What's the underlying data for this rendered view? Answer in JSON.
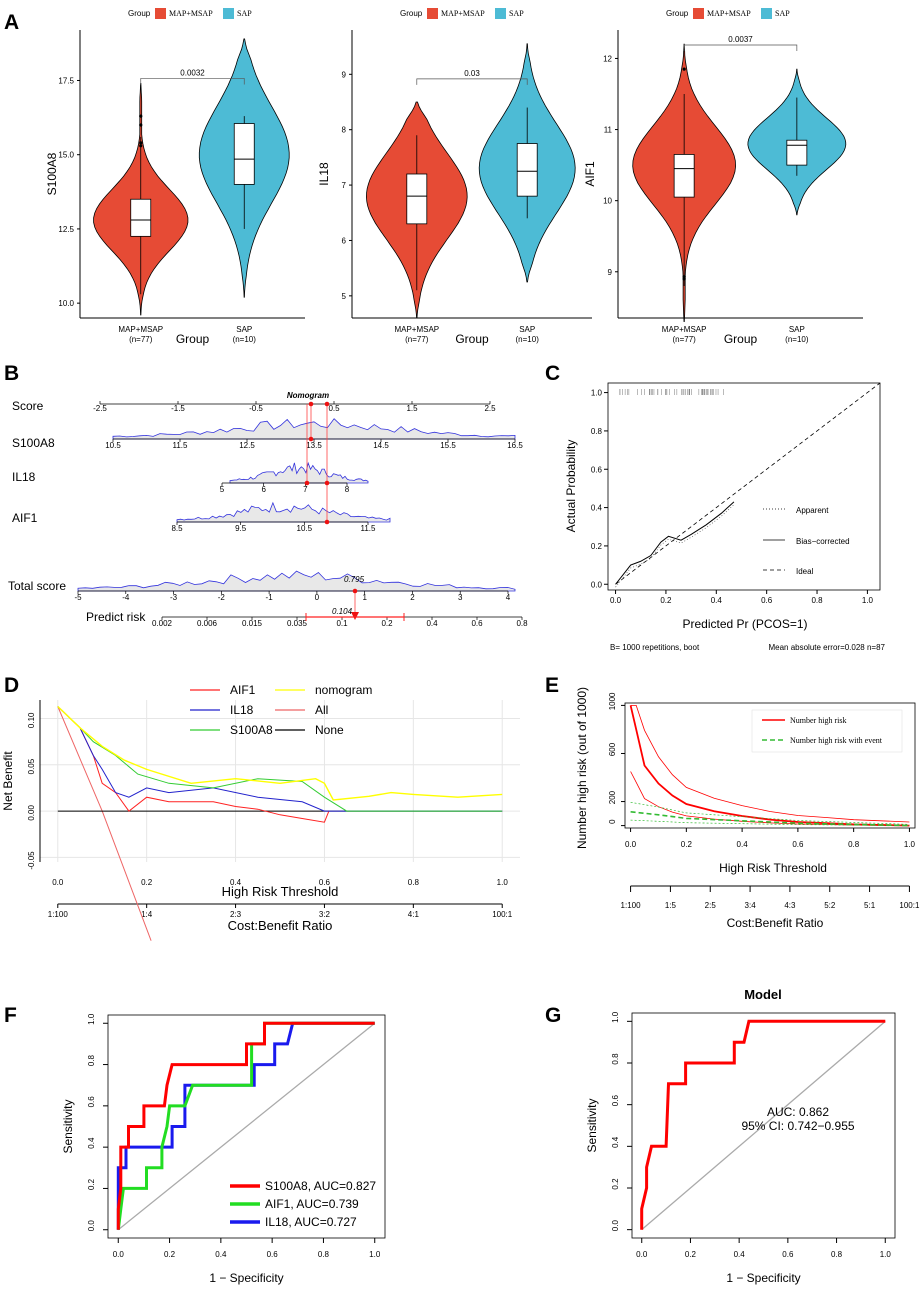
{
  "colors": {
    "red": "#e64b35",
    "blue": "#4dbbd5",
    "roc_red": "#ff0000",
    "roc_green": "#22dd22",
    "roc_blue": "#1a1aee",
    "yellow": "#ffff00",
    "green": "#33cc33",
    "navy": "#2222cc",
    "pink": "#ff6666",
    "dens": "#3333dd"
  },
  "panels": {
    "A": "A",
    "B": "B",
    "C": "C",
    "D": "D",
    "E": "E",
    "F": "F",
    "G": "G"
  },
  "chart_data": [
    {
      "id": "A",
      "type": "violin",
      "legend_title": "Group",
      "legend": [
        "MAP+MSAP",
        "SAP"
      ],
      "xlabel": "Group",
      "categories": [
        "MAP+MSAP\n(n=77)",
        "SAP\n(n=10)"
      ],
      "cat_line1": [
        "MAP+MSAP",
        "SAP"
      ],
      "cat_line2": [
        "(n=77)",
        "(n=10)"
      ],
      "plots": [
        {
          "ylabel": "S100A8",
          "ylim": [
            9.5,
            19.2
          ],
          "yticks": [
            10.0,
            12.5,
            15.0,
            17.5
          ],
          "ytick_labels": [
            "10.0",
            "12.5",
            "15.0",
            "17.5"
          ],
          "pvalue": "0.0032",
          "groups": [
            {
              "min": 10.3,
              "q1": 12.25,
              "median": 12.8,
              "q3": 13.5,
              "max": 15.6,
              "vmin": 9.6,
              "vmax": 17.4,
              "mode": 12.8,
              "outliers": [
                15.4,
                15.3,
                16.0,
                16.3
              ]
            },
            {
              "min": 12.5,
              "q1": 14.0,
              "median": 14.85,
              "q3": 16.05,
              "max": 16.3,
              "vmin": 10.2,
              "vmax": 18.9,
              "mode": 15.0,
              "outliers": []
            }
          ]
        },
        {
          "ylabel": "IL18",
          "ylim": [
            4.6,
            9.8
          ],
          "yticks": [
            5,
            6,
            7,
            8,
            9
          ],
          "ytick_labels": [
            "5",
            "6",
            "7",
            "8",
            "9"
          ],
          "pvalue": "0.03",
          "groups": [
            {
              "min": 5.1,
              "q1": 6.3,
              "median": 6.8,
              "q3": 7.2,
              "max": 7.9,
              "vmin": 4.6,
              "vmax": 8.5,
              "mode": 6.8,
              "outliers": []
            },
            {
              "min": 6.4,
              "q1": 6.8,
              "median": 7.25,
              "q3": 7.75,
              "max": 8.4,
              "vmin": 5.25,
              "vmax": 9.55,
              "mode": 7.3,
              "outliers": []
            }
          ]
        },
        {
          "ylabel": "AIF1",
          "ylim": [
            8.35,
            12.4
          ],
          "yticks": [
            9,
            10,
            11,
            12
          ],
          "ytick_labels": [
            "9",
            "10",
            "11",
            "12"
          ],
          "pvalue": "0.0037",
          "groups": [
            {
              "min": 8.8,
              "q1": 10.05,
              "median": 10.45,
              "q3": 10.65,
              "max": 11.5,
              "vmin": 8.3,
              "vmax": 12.2,
              "mode": 10.5,
              "outliers": [
                8.9,
                8.93,
                11.85
              ]
            },
            {
              "min": 10.35,
              "q1": 10.5,
              "median": 10.78,
              "q3": 10.85,
              "max": 11.45,
              "vmin": 9.8,
              "vmax": 11.85,
              "mode": 10.8,
              "outliers": []
            }
          ]
        }
      ]
    },
    {
      "id": "B",
      "type": "nomogram",
      "title": "Nomogram",
      "rows": [
        {
          "label": "Score",
          "ticks": [
            "-2.5",
            "-1.5",
            "-0.5",
            "0.5",
            "1.5",
            "2.5"
          ]
        },
        {
          "label": "S100A8",
          "ticks": [
            "10.5",
            "11.5",
            "12.5",
            "13.5",
            "14.5",
            "15.5",
            "16.5"
          ]
        },
        {
          "label": "IL18",
          "ticks": [
            "5",
            "6",
            "7",
            "8"
          ]
        },
        {
          "label": "AIF1",
          "ticks": [
            "8.5",
            "9.5",
            "10.5",
            "11.5"
          ]
        },
        {
          "label": "Total score",
          "ticks": [
            "-5",
            "-4",
            "-3",
            "-2",
            "-1",
            "0",
            "1",
            "2",
            "3",
            "4"
          ]
        },
        {
          "label": "Predict risk",
          "ticks": [
            "0.002",
            "0.006",
            "0.015",
            "0.035",
            "0.1",
            "0.2",
            "0.4",
            "0.6",
            "0.8"
          ]
        }
      ],
      "total_value": "0.795",
      "risk_value": "0.104"
    },
    {
      "id": "C",
      "type": "calibration",
      "xlabel": "Predicted Pr (PCOS=1)",
      "ylabel": "Actual Probability",
      "xlim": [
        0,
        1
      ],
      "ylim": [
        0,
        1
      ],
      "ticks": [
        "0.0",
        "0.2",
        "0.4",
        "0.6",
        "0.8",
        "1.0"
      ],
      "legend": [
        "Apparent",
        "Bias−corrected",
        "Ideal"
      ],
      "footer_left": "B= 1000 repetitions, boot",
      "footer_right": "Mean absolute error=0.028 n=87",
      "bias_corrected": [
        [
          0.0,
          0.0
        ],
        [
          0.03,
          0.05
        ],
        [
          0.06,
          0.1
        ],
        [
          0.1,
          0.12
        ],
        [
          0.14,
          0.15
        ],
        [
          0.18,
          0.22
        ],
        [
          0.21,
          0.25
        ],
        [
          0.26,
          0.23
        ],
        [
          0.3,
          0.26
        ],
        [
          0.36,
          0.31
        ],
        [
          0.42,
          0.37
        ],
        [
          0.47,
          0.43
        ]
      ]
    },
    {
      "id": "D",
      "type": "line",
      "xlabel": "High Risk Threshold",
      "ylabel": "Net Benefit",
      "x2label": "Cost:Benefit Ratio",
      "xlim": [
        0,
        1
      ],
      "ylim": [
        -0.055,
        0.12
      ],
      "xticks": [
        "0.0",
        "0.2",
        "0.4",
        "0.6",
        "0.8",
        "1.0"
      ],
      "yticks": [
        "-0.05",
        "0.00",
        "0.05",
        "0.10"
      ],
      "x2ticks": [
        "1:100",
        "1:4",
        "2:3",
        "3:2",
        "4:1",
        "100:1"
      ],
      "series": [
        {
          "name": "AIF1",
          "color": "#ff2222",
          "points": [
            [
              0,
              0.113
            ],
            [
              0.05,
              0.09
            ],
            [
              0.08,
              0.06
            ],
            [
              0.1,
              0.03
            ],
            [
              0.13,
              0.02
            ],
            [
              0.16,
              0.0
            ],
            [
              0.2,
              0.015
            ],
            [
              0.25,
              0.01
            ],
            [
              0.35,
              0.01
            ],
            [
              0.4,
              0.005
            ],
            [
              0.45,
              0.002
            ],
            [
              0.5,
              -0.004
            ],
            [
              0.55,
              -0.008
            ],
            [
              0.6,
              -0.012
            ],
            [
              0.61,
              0.0
            ]
          ]
        },
        {
          "name": "IL18",
          "color": "#2222cc",
          "points": [
            [
              0,
              0.113
            ],
            [
              0.05,
              0.09
            ],
            [
              0.08,
              0.06
            ],
            [
              0.1,
              0.045
            ],
            [
              0.13,
              0.02
            ],
            [
              0.16,
              0.015
            ],
            [
              0.2,
              0.025
            ],
            [
              0.25,
              0.02
            ],
            [
              0.35,
              0.025
            ],
            [
              0.45,
              0.015
            ],
            [
              0.55,
              0.01
            ],
            [
              0.6,
              0.0
            ],
            [
              1.0,
              0.0
            ]
          ]
        },
        {
          "name": "S100A8",
          "color": "#33cc33",
          "points": [
            [
              0,
              0.113
            ],
            [
              0.05,
              0.09
            ],
            [
              0.08,
              0.075
            ],
            [
              0.13,
              0.06
            ],
            [
              0.18,
              0.04
            ],
            [
              0.25,
              0.03
            ],
            [
              0.35,
              0.025
            ],
            [
              0.45,
              0.035
            ],
            [
              0.55,
              0.032
            ],
            [
              0.6,
              0.015
            ],
            [
              0.65,
              0.0
            ],
            [
              1.0,
              0.0
            ]
          ]
        },
        {
          "name": "nomogram",
          "color": "#ffff00",
          "points": [
            [
              0,
              0.113
            ],
            [
              0.05,
              0.09
            ],
            [
              0.1,
              0.07
            ],
            [
              0.15,
              0.055
            ],
            [
              0.2,
              0.045
            ],
            [
              0.3,
              0.03
            ],
            [
              0.4,
              0.035
            ],
            [
              0.5,
              0.03
            ],
            [
              0.58,
              0.035
            ],
            [
              0.6,
              0.03
            ],
            [
              0.62,
              0.012
            ],
            [
              0.7,
              0.016
            ],
            [
              0.75,
              0.02
            ],
            [
              0.8,
              0.018
            ],
            [
              0.9,
              0.015
            ],
            [
              1.0,
              0.018
            ]
          ]
        },
        {
          "name": "All",
          "color": "#ee6666",
          "points": [
            [
              0,
              0.113
            ],
            [
              0.1,
              0.0
            ],
            [
              0.21,
              -0.14
            ]
          ]
        },
        {
          "name": "None",
          "color": "#000000",
          "points": [
            [
              0,
              0.0
            ],
            [
              1.0,
              0.0
            ]
          ]
        }
      ]
    },
    {
      "id": "E",
      "type": "line",
      "xlabel": "High Risk Threshold",
      "ylabel": "Number high risk (out of 1000)",
      "x2label": "Cost:Benefit Ratio",
      "xlim": [
        0,
        1
      ],
      "ylim": [
        0,
        1000
      ],
      "xticks": [
        "0.0",
        "0.2",
        "0.4",
        "0.6",
        "0.8",
        "1.0"
      ],
      "yticks": [
        "0",
        "200",
        "600",
        "1000"
      ],
      "x2ticks": [
        "1:100",
        "1:5",
        "2:5",
        "3:4",
        "4:3",
        "5:2",
        "5:1",
        "100:1"
      ],
      "legend": [
        "Number high risk",
        "Number high risk with event"
      ],
      "series": [
        {
          "name": "Number high risk",
          "points": [
            [
              0,
              1000
            ],
            [
              0.02,
              800
            ],
            [
              0.05,
              500
            ],
            [
              0.1,
              350
            ],
            [
              0.15,
              250
            ],
            [
              0.2,
              180
            ],
            [
              0.3,
              120
            ],
            [
              0.4,
              80
            ],
            [
              0.5,
              50
            ],
            [
              0.6,
              30
            ],
            [
              0.7,
              20
            ],
            [
              0.8,
              10
            ],
            [
              1.0,
              0
            ]
          ]
        },
        {
          "name": "Number high risk with event",
          "points": [
            [
              0,
              115
            ],
            [
              0.1,
              90
            ],
            [
              0.2,
              60
            ],
            [
              0.4,
              40
            ],
            [
              0.6,
              20
            ],
            [
              1.0,
              0
            ]
          ]
        }
      ]
    },
    {
      "id": "F",
      "type": "roc",
      "xlabel": "1 − Specificity",
      "ylabel": "Sensitivity",
      "ticks": [
        "0.0",
        "0.2",
        "0.4",
        "0.6",
        "0.8",
        "1.0"
      ],
      "series": [
        {
          "name": "S100A8, AUC=0.827",
          "color": "#ff0000",
          "points": [
            [
              0,
              0
            ],
            [
              0,
              0.1
            ],
            [
              0.01,
              0.2
            ],
            [
              0.01,
              0.4
            ],
            [
              0.04,
              0.4
            ],
            [
              0.04,
              0.5
            ],
            [
              0.1,
              0.5
            ],
            [
              0.1,
              0.6
            ],
            [
              0.18,
              0.6
            ],
            [
              0.19,
              0.7
            ],
            [
              0.21,
              0.8
            ],
            [
              0.5,
              0.8
            ],
            [
              0.5,
              0.9
            ],
            [
              0.57,
              0.9
            ],
            [
              0.57,
              1.0
            ],
            [
              1.0,
              1.0
            ]
          ]
        },
        {
          "name": "AIF1, AUC=0.739",
          "color": "#22dd22",
          "points": [
            [
              0,
              0
            ],
            [
              0.01,
              0.1
            ],
            [
              0.02,
              0.2
            ],
            [
              0.11,
              0.2
            ],
            [
              0.11,
              0.3
            ],
            [
              0.17,
              0.3
            ],
            [
              0.17,
              0.4
            ],
            [
              0.19,
              0.5
            ],
            [
              0.2,
              0.6
            ],
            [
              0.26,
              0.6
            ],
            [
              0.29,
              0.7
            ],
            [
              0.52,
              0.7
            ],
            [
              0.52,
              0.9
            ],
            [
              0.57,
              0.9
            ],
            [
              0.57,
              1.0
            ],
            [
              1.0,
              1.0
            ]
          ]
        },
        {
          "name": "IL18, AUC=0.727",
          "color": "#1a1aee",
          "points": [
            [
              0,
              0
            ],
            [
              0,
              0.3
            ],
            [
              0.03,
              0.3
            ],
            [
              0.03,
              0.4
            ],
            [
              0.21,
              0.4
            ],
            [
              0.21,
              0.5
            ],
            [
              0.26,
              0.5
            ],
            [
              0.26,
              0.7
            ],
            [
              0.3,
              0.7
            ],
            [
              0.53,
              0.7
            ],
            [
              0.53,
              0.8
            ],
            [
              0.61,
              0.8
            ],
            [
              0.61,
              0.9
            ],
            [
              0.66,
              0.9
            ],
            [
              0.68,
              1.0
            ],
            [
              1.0,
              1.0
            ]
          ]
        }
      ]
    },
    {
      "id": "G",
      "type": "roc",
      "title": "Model",
      "xlabel": "1 − Specificity",
      "ylabel": "Sensitivity",
      "ticks": [
        "0.0",
        "0.2",
        "0.4",
        "0.6",
        "0.8",
        "1.0"
      ],
      "annotation": [
        "AUC: 0.862",
        "95% CI: 0.742−0.955"
      ],
      "series": [
        {
          "name": "Model",
          "color": "#ff0000",
          "points": [
            [
              0,
              0
            ],
            [
              0,
              0.1
            ],
            [
              0.02,
              0.2
            ],
            [
              0.02,
              0.3
            ],
            [
              0.04,
              0.4
            ],
            [
              0.1,
              0.4
            ],
            [
              0.11,
              0.7
            ],
            [
              0.18,
              0.7
            ],
            [
              0.18,
              0.8
            ],
            [
              0.38,
              0.8
            ],
            [
              0.38,
              0.9
            ],
            [
              0.42,
              0.9
            ],
            [
              0.44,
              1.0
            ],
            [
              1.0,
              1.0
            ]
          ]
        }
      ]
    }
  ]
}
